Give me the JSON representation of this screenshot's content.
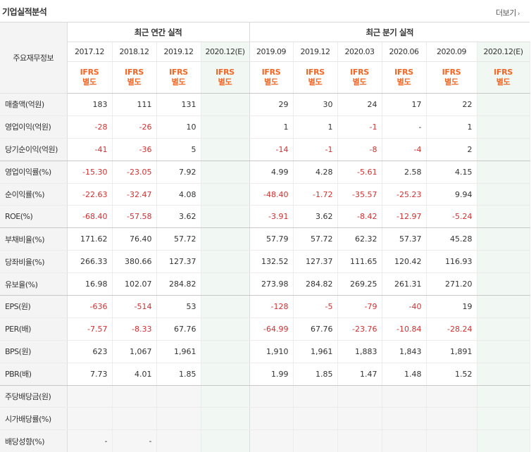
{
  "header": {
    "title": "기업실적분석",
    "more_label": "더보기",
    "more_arrow": "›"
  },
  "table": {
    "corner_label": "주요재무정보",
    "group_annual": "최근 연간 실적",
    "group_quarter": "최근 분기 실적",
    "columns": [
      "2017.12",
      "2018.12",
      "2019.12",
      "2020.12(E)",
      "2019.09",
      "2019.12",
      "2020.03",
      "2020.06",
      "2020.09",
      "2020.12(E)"
    ],
    "ifrs_top": "IFRS",
    "ifrs_bottom": "별도",
    "rows": [
      {
        "label": "매출액(억원)",
        "values": [
          "183",
          "111",
          "131",
          "",
          "29",
          "30",
          "24",
          "17",
          "22",
          ""
        ]
      },
      {
        "label": "영업이익(억원)",
        "values": [
          "-28",
          "-26",
          "10",
          "",
          "1",
          "1",
          "-1",
          "-",
          "1",
          ""
        ]
      },
      {
        "label": "당기순이익(억원)",
        "values": [
          "-41",
          "-36",
          "5",
          "",
          "-14",
          "-1",
          "-8",
          "-4",
          "2",
          ""
        ]
      },
      {
        "label": "영업이익률(%)",
        "values": [
          "-15.30",
          "-23.05",
          "7.92",
          "",
          "4.99",
          "4.28",
          "-5.61",
          "2.58",
          "4.15",
          ""
        ]
      },
      {
        "label": "순이익률(%)",
        "values": [
          "-22.63",
          "-32.47",
          "4.08",
          "",
          "-48.40",
          "-1.72",
          "-35.57",
          "-25.23",
          "9.94",
          ""
        ]
      },
      {
        "label": "ROE(%)",
        "values": [
          "-68.40",
          "-57.58",
          "3.62",
          "",
          "-3.91",
          "3.62",
          "-8.42",
          "-12.97",
          "-5.24",
          ""
        ]
      },
      {
        "label": "부채비율(%)",
        "values": [
          "171.62",
          "76.40",
          "57.72",
          "",
          "57.79",
          "57.72",
          "62.32",
          "57.37",
          "45.28",
          ""
        ]
      },
      {
        "label": "당좌비율(%)",
        "values": [
          "266.33",
          "380.66",
          "127.37",
          "",
          "132.52",
          "127.37",
          "111.65",
          "120.42",
          "116.93",
          ""
        ]
      },
      {
        "label": "유보율(%)",
        "values": [
          "16.98",
          "102.07",
          "284.82",
          "",
          "273.98",
          "284.82",
          "269.25",
          "261.31",
          "271.20",
          ""
        ]
      },
      {
        "label": "EPS(원)",
        "values": [
          "-636",
          "-514",
          "53",
          "",
          "-128",
          "-5",
          "-79",
          "-40",
          "19",
          ""
        ]
      },
      {
        "label": "PER(배)",
        "values": [
          "-7.57",
          "-8.33",
          "67.76",
          "",
          "-64.99",
          "67.76",
          "-23.76",
          "-10.84",
          "-28.24",
          ""
        ]
      },
      {
        "label": "BPS(원)",
        "values": [
          "623",
          "1,067",
          "1,961",
          "",
          "1,910",
          "1,961",
          "1,883",
          "1,843",
          "1,891",
          ""
        ]
      },
      {
        "label": "PBR(배)",
        "values": [
          "7.73",
          "4.01",
          "1.85",
          "",
          "1.99",
          "1.85",
          "1.47",
          "1.48",
          "1.52",
          ""
        ]
      },
      {
        "label": "주당배당금(원)",
        "values": [
          "",
          "",
          "",
          "",
          "",
          "",
          "",
          "",
          "",
          ""
        ]
      },
      {
        "label": "시가배당률(%)",
        "values": [
          "",
          "",
          "",
          "",
          "",
          "",
          "",
          "",
          "",
          ""
        ]
      },
      {
        "label": "배당성향(%)",
        "values": [
          "-",
          "-",
          "",
          "",
          "",
          "",
          "",
          "",
          "",
          ""
        ]
      }
    ]
  },
  "colors": {
    "negative": "#d32f2f",
    "ifrs": "#f26522",
    "estimate_bg": "#f1f8f4"
  }
}
